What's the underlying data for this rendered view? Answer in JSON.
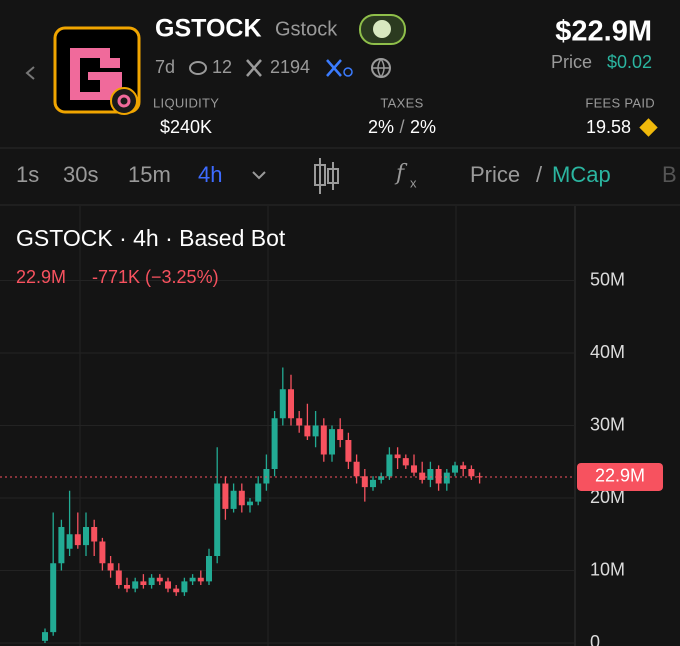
{
  "header": {
    "name": "GSTOCK",
    "ticker": "Gstock",
    "market_cap": "$22.9M",
    "age": "7d",
    "views": "12",
    "followers": "2194",
    "price_label": "Price",
    "price": "$0.02",
    "stats": [
      {
        "label": "LIQUIDITY",
        "value": "$240K"
      },
      {
        "label": "TAXES",
        "buy": "2%",
        "separator": "/",
        "sell": "2%"
      },
      {
        "label": "FEES PAID",
        "value": "19.58"
      }
    ]
  },
  "toolbar": {
    "intervals": [
      "1s",
      "30s",
      "15m",
      "4h"
    ],
    "price": "Price",
    "separator": "/",
    "mcap": "MCap",
    "more": "B"
  },
  "chart_data": {
    "type": "candlestick",
    "title": "GSTOCK · 4h · Based Bot",
    "change": "-771K (−3.25%)",
    "up_color": "#22ab94",
    "down_color": "#f7525f",
    "price_line": {
      "value": 22900000,
      "label": "22.9M"
    },
    "ylim": [
      0,
      60000000
    ],
    "yticks": [
      0,
      {
        "value": 10000000,
        "label": "10M"
      },
      {
        "value": 20000000,
        "label": "20M"
      },
      {
        "value": 30000000,
        "label": "30M"
      },
      {
        "value": 40000000,
        "label": "40M"
      },
      {
        "value": 50000000,
        "label": "50M"
      }
    ],
    "open": [
      300000.0,
      1500000.0,
      11000000.0,
      13000000.0,
      15000000.0,
      13500000.0,
      16000000.0,
      14000000.0,
      11000000.0,
      10000000.0,
      8000000.0,
      7500000.0,
      8500000.0,
      8000000.0,
      9000000.0,
      8500000.0,
      7500000.0,
      7000000.0,
      8500000.0,
      9000000.0,
      8500000.0,
      12000000.0,
      22000000.0,
      18500000.0,
      21000000.0,
      19000000.0,
      19500000.0,
      22000000.0,
      24000000.0,
      31000000.0,
      35000000.0,
      31000000.0,
      30000000.0,
      28500000.0,
      30000000.0,
      26000000.0,
      29500000.0,
      28000000.0,
      25000000.0,
      23000000.0,
      21500000.0,
      22500000.0,
      23000000.0,
      26000000.0,
      25500000.0,
      24500000.0,
      23500000.0,
      22500000.0,
      24000000.0,
      22000000.0,
      23500000.0,
      24500000.0,
      24000000.0,
      23000000.0
    ],
    "high": [
      2000000.0,
      18000000.0,
      17000000.0,
      21000000.0,
      18000000.0,
      18000000.0,
      17000000.0,
      14500000.0,
      12000000.0,
      11000000.0,
      9000000.0,
      9000000.0,
      9500000.0,
      9500000.0,
      9500000.0,
      9000000.0,
      8000000.0,
      9000000.0,
      9500000.0,
      10000000.0,
      13000000.0,
      27000000.0,
      23000000.0,
      22000000.0,
      22000000.0,
      20000000.0,
      23000000.0,
      26000000.0,
      32000000.0,
      38000000.0,
      37000000.0,
      32000000.0,
      33000000.0,
      32000000.0,
      31000000.0,
      30000000.0,
      31000000.0,
      29000000.0,
      26000000.0,
      24000000.0,
      23000000.0,
      23500000.0,
      27000000.0,
      27000000.0,
      26000000.0,
      26000000.0,
      25000000.0,
      25000000.0,
      24500000.0,
      24000000.0,
      25000000.0,
      25000000.0,
      24500000.0,
      23500000.0
    ],
    "low": [
      0,
      1000000.0,
      10000000.0,
      12000000.0,
      13000000.0,
      12000000.0,
      12000000.0,
      10000000.0,
      9000000.0,
      7500000.0,
      7000000.0,
      7000000.0,
      7500000.0,
      7500000.0,
      8000000.0,
      7000000.0,
      6500000.0,
      6500000.0,
      8000000.0,
      8000000.0,
      8000000.0,
      11000000.0,
      17000000.0,
      18000000.0,
      18000000.0,
      18000000.0,
      19000000.0,
      21000000.0,
      23000000.0,
      30000000.0,
      30000000.0,
      29000000.0,
      28000000.0,
      27000000.0,
      25000000.0,
      25000000.0,
      27000000.0,
      24000000.0,
      22000000.0,
      19500000.0,
      21000000.0,
      22000000.0,
      22500000.0,
      24000000.0,
      24000000.0,
      23000000.0,
      22000000.0,
      21500000.0,
      21000000.0,
      21000000.0,
      23000000.0,
      23000000.0,
      22500000.0,
      22000000.0
    ],
    "close": [
      1500000.0,
      11000000.0,
      16000000.0,
      15000000.0,
      13500000.0,
      16000000.0,
      14000000.0,
      11000000.0,
      10000000.0,
      8000000.0,
      7500000.0,
      8500000.0,
      8000000.0,
      9000000.0,
      8500000.0,
      7500000.0,
      7000000.0,
      8500000.0,
      9000000.0,
      8500000.0,
      12000000.0,
      22000000.0,
      18500000.0,
      21000000.0,
      19000000.0,
      19500000.0,
      22000000.0,
      24000000.0,
      31000000.0,
      35000000.0,
      31000000.0,
      30000000.0,
      28500000.0,
      30000000.0,
      26000000.0,
      29500000.0,
      28000000.0,
      25000000.0,
      23000000.0,
      21500000.0,
      22500000.0,
      23000000.0,
      26000000.0,
      25500000.0,
      24500000.0,
      23500000.0,
      22500000.0,
      24000000.0,
      22000000.0,
      23500000.0,
      24500000.0,
      24000000.0,
      23000000.0,
      22900000.0
    ]
  }
}
